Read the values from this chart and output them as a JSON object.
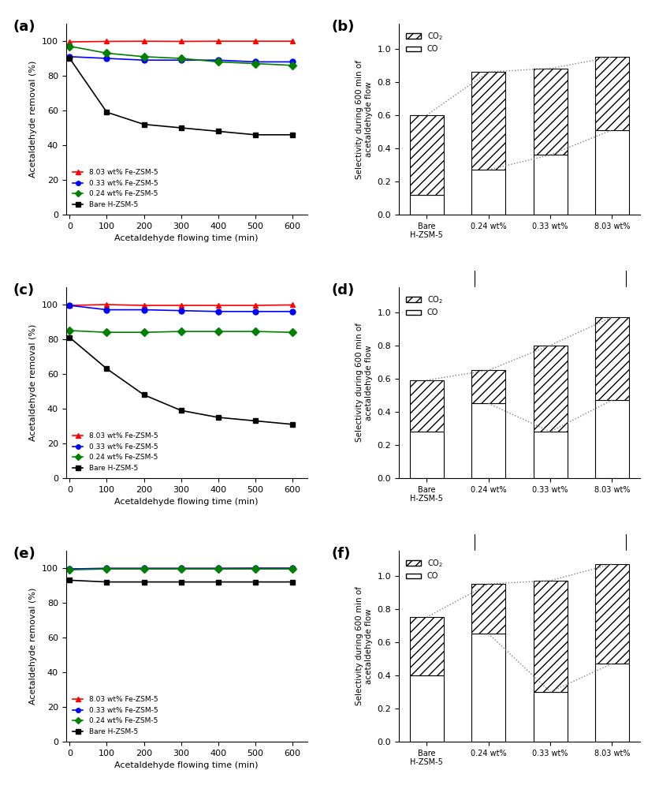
{
  "line_x": [
    0,
    100,
    200,
    300,
    400,
    500,
    600
  ],
  "panel_a": {
    "red": [
      99.5,
      99.8,
      99.9,
      99.8,
      99.9,
      99.9,
      99.9
    ],
    "blue": [
      91,
      90,
      89,
      89,
      89,
      88,
      88
    ],
    "green": [
      97,
      93,
      91,
      90,
      88,
      87,
      86
    ],
    "black": [
      90,
      59,
      52,
      50,
      48,
      46,
      46
    ]
  },
  "panel_c": {
    "red": [
      99.5,
      100,
      99.5,
      99.5,
      99.5,
      99.5,
      99.8
    ],
    "blue": [
      99.5,
      97,
      97,
      96.5,
      96,
      96,
      96
    ],
    "green": [
      85,
      84,
      84,
      84.5,
      84.5,
      84.5,
      84
    ],
    "black": [
      81,
      63,
      48,
      39,
      35,
      33,
      31
    ]
  },
  "panel_e": {
    "red": [
      99.5,
      99.8,
      99.8,
      99.8,
      99.8,
      99.9,
      99.9
    ],
    "blue": [
      99.5,
      99.8,
      99.8,
      99.8,
      99.8,
      99.9,
      99.9
    ],
    "green": [
      99,
      99.5,
      99.5,
      99.5,
      99.5,
      99.5,
      99.5
    ],
    "black": [
      93,
      92,
      92,
      92,
      92,
      92,
      92
    ]
  },
  "bar_categories": [
    "Bare\nH-ZSM-5",
    "0.24 wt%",
    "0.33 wt%",
    "8.03 wt%"
  ],
  "panel_b": {
    "CO": [
      0.12,
      0.27,
      0.36,
      0.51
    ],
    "CO2": [
      0.48,
      0.59,
      0.52,
      0.44
    ]
  },
  "panel_d": {
    "CO": [
      0.28,
      0.45,
      0.28,
      0.47
    ],
    "CO2": [
      0.31,
      0.2,
      0.52,
      0.5
    ]
  },
  "panel_f": {
    "CO": [
      0.4,
      0.65,
      0.3,
      0.47
    ],
    "CO2": [
      0.35,
      0.3,
      0.67,
      0.6
    ]
  },
  "colors": {
    "red": "#FF0000",
    "blue": "#0000FF",
    "green": "#008000",
    "black": "#000000"
  },
  "hatch_pattern": "///",
  "bar_edge_color": "#000000",
  "dot_line_color": "#999999"
}
